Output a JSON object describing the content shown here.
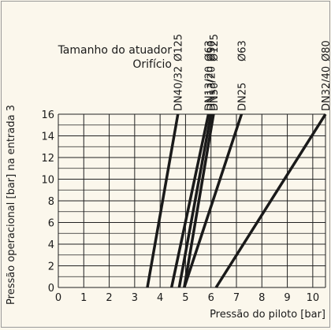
{
  "chart_data": {
    "type": "line",
    "header_labels": [
      "Tamanho do atuador",
      "Orifício"
    ],
    "xlabel": "Pressão do piloto [bar]",
    "ylabel": "Pressão operacional [bar] na entrada 3",
    "xlim": [
      0,
      10.5
    ],
    "ylim": [
      0,
      16
    ],
    "x_ticks": [
      0,
      1,
      2,
      3,
      4,
      5,
      6,
      7,
      8,
      9,
      10
    ],
    "y_ticks": [
      0,
      2,
      4,
      6,
      8,
      10,
      12,
      14,
      16
    ],
    "grid": true,
    "line_color": "#1a1a1a",
    "series": [
      {
        "actuator": "Ø125",
        "orifice": "DN40/32",
        "x": [
          3.5,
          4.7
        ],
        "y": [
          0,
          16
        ]
      },
      {
        "actuator": "Ø63",
        "orifice": "DN13/20",
        "x": [
          4.45,
          5.9
        ],
        "y": [
          0,
          16
        ]
      },
      {
        "actuator": "Ø50",
        "orifice": "DN13/20",
        "x": [
          4.75,
          6.0
        ],
        "y": [
          0,
          16
        ]
      },
      {
        "actuator": "Ø125",
        "orifice": "DN50",
        "x": [
          4.95,
          6.1
        ],
        "y": [
          0,
          16
        ]
      },
      {
        "actuator": "Ø63",
        "orifice": "DN25",
        "x": [
          4.95,
          7.2
        ],
        "y": [
          0,
          16
        ]
      },
      {
        "actuator": "Ø80",
        "orifice": "DN32/40",
        "x": [
          6.2,
          10.5
        ],
        "y": [
          0,
          16
        ]
      }
    ]
  }
}
